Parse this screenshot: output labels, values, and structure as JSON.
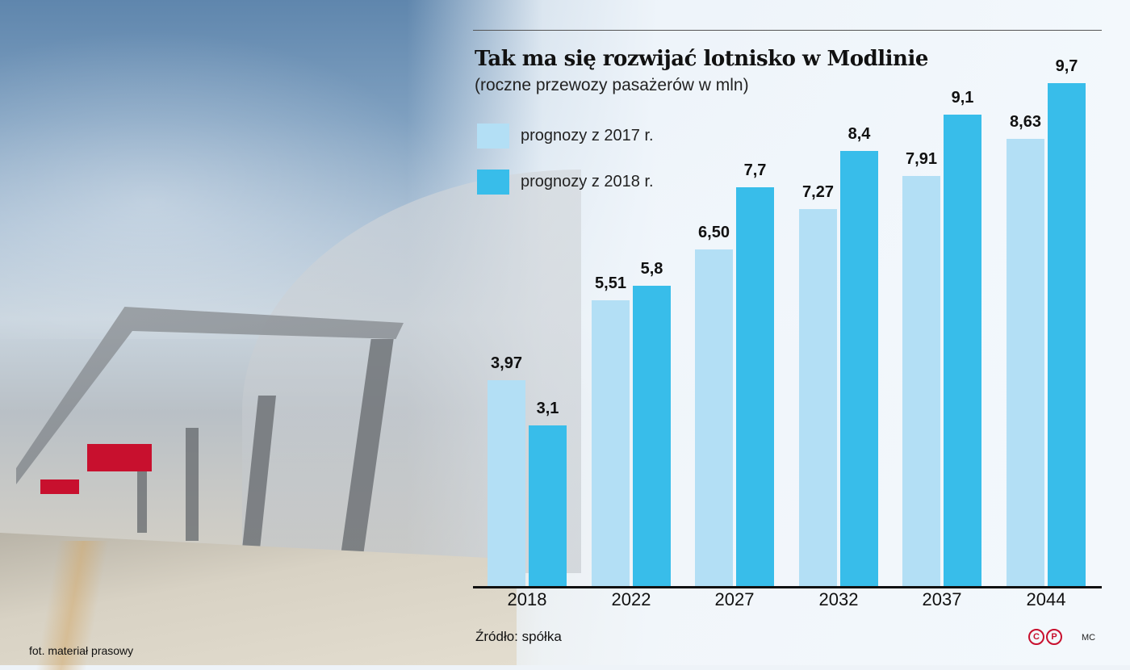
{
  "header": {
    "title": "Tak ma się rozwijać lotnisko w Modlinie",
    "subtitle": "(roczne przewozy pasażerów w mln)"
  },
  "legend": [
    {
      "label": "prognozy z 2017 r.",
      "color": "#b3dff5"
    },
    {
      "label": "prognozy z 2018 r.",
      "color": "#38bdea"
    }
  ],
  "footer": {
    "source": "Źródło: spółka",
    "logo": "CP",
    "logo_c": "C",
    "logo_p": "P",
    "author": "MC",
    "photo_credit": "fot. materiał prasowy"
  },
  "chart_data": {
    "type": "bar",
    "title": "Tak ma się rozwijać lotnisko w Modlinie",
    "subtitle": "(roczne przewozy pasażerów w mln)",
    "xlabel": "",
    "ylabel": "roczne przewozy pasażerów (mln)",
    "categories": [
      "2018",
      "2022",
      "2027",
      "2032",
      "2037",
      "2044"
    ],
    "series": [
      {
        "name": "prognozy z 2017 r.",
        "color": "#b3dff5",
        "values": [
          3.97,
          5.51,
          6.5,
          7.27,
          7.91,
          8.63
        ],
        "labels": [
          "3,97",
          "5,51",
          "6,50",
          "7,27",
          "7,91",
          "8,63"
        ]
      },
      {
        "name": "prognozy z 2018 r.",
        "color": "#38bdea",
        "values": [
          3.1,
          5.8,
          7.7,
          8.4,
          9.1,
          9.7
        ],
        "labels": [
          "3,1",
          "5,8",
          "7,7",
          "8,4",
          "9,1",
          "9,7"
        ]
      }
    ],
    "ylim": [
      0,
      10
    ],
    "grid": false,
    "legend_position": "top-left"
  }
}
